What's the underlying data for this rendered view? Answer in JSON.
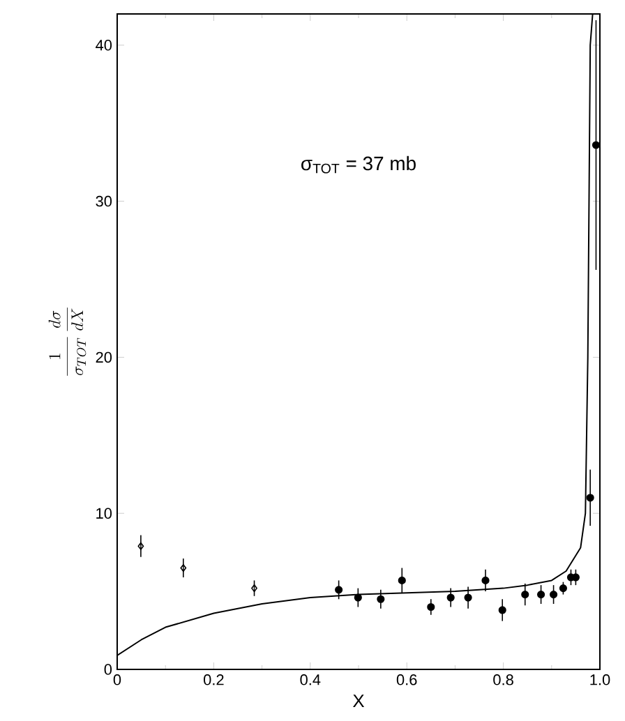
{
  "chart_data": {
    "type": "scatter",
    "xlabel": "X",
    "ylabel": "\\frac{1}{\\sigma_{TOT}}\\,\\frac{d\\sigma}{dX}",
    "annotations": [
      "σ$_{TOT}$ = 37 mb"
    ],
    "xlim": [
      0,
      1.0
    ],
    "ylim": [
      0,
      42
    ],
    "xticks": [
      0,
      {
        "value": 0.2,
        "label": "0.2"
      },
      {
        "value": 0.4,
        "label": "0.4"
      },
      {
        "value": 0.6,
        "label": "0.6"
      },
      {
        "value": 0.8,
        "label": "0.8"
      },
      {
        "value": 1.0,
        "label": "1.0"
      }
    ],
    "yticks": [
      0,
      10,
      20,
      30,
      40
    ],
    "grid": false,
    "series": [
      {
        "marker": "diamond",
        "color": "#000000",
        "x": [
          0.049,
          0.137,
          0.284
        ],
        "values": [
          7.9,
          6.5,
          5.2
        ],
        "errors": [
          0.7,
          0.6,
          0.5
        ]
      },
      {
        "marker": "circle",
        "color": "#000000",
        "x": [
          0.459,
          0.499,
          0.546,
          0.59,
          0.65,
          0.691,
          0.727,
          0.763,
          0.798,
          0.845,
          0.878,
          0.904,
          0.924,
          0.94,
          0.95,
          0.98,
          0.992
        ],
        "values": [
          5.1,
          4.6,
          4.5,
          5.7,
          4.0,
          4.6,
          4.6,
          5.7,
          3.8,
          4.8,
          4.8,
          4.8,
          5.2,
          5.9,
          5.9,
          11.0,
          33.6
        ],
        "errors": [
          0.6,
          0.6,
          0.6,
          0.8,
          0.5,
          0.6,
          0.7,
          0.7,
          0.7,
          0.7,
          0.6,
          0.6,
          0.4,
          0.5,
          0.5,
          1.8,
          8.0
        ]
      },
      {
        "type": "line",
        "color": "#000000",
        "x": [
          0,
          0.05,
          0.1,
          0.2,
          0.3,
          0.4,
          0.5,
          0.6,
          0.7,
          0.8,
          0.85,
          0.9,
          0.93,
          0.96,
          0.97,
          0.975,
          0.98,
          0.985
        ],
        "values": [
          0.9,
          1.9,
          2.7,
          3.6,
          4.2,
          4.6,
          4.8,
          4.9,
          5.0,
          5.2,
          5.4,
          5.7,
          6.3,
          7.8,
          10.0,
          20.0,
          40.0,
          42.0
        ]
      }
    ]
  }
}
